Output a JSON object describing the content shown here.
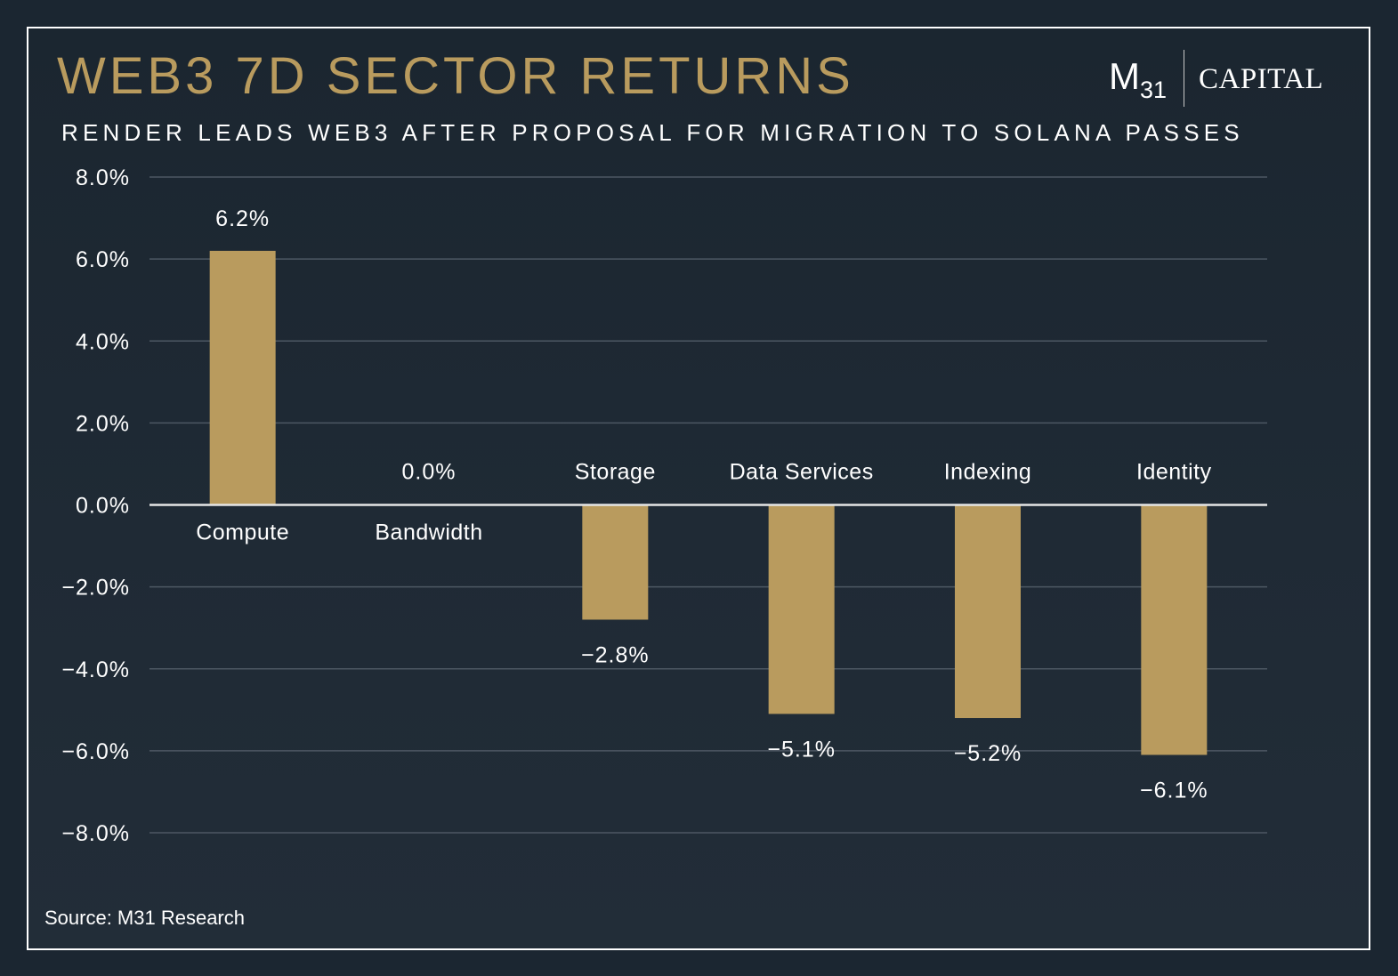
{
  "title": "WEB3 7D SECTOR RETURNS",
  "subtitle": "RENDER LEADS WEB3 AFTER PROPOSAL FOR MIGRATION TO SOLANA PASSES",
  "logo": {
    "mark": "M",
    "mark_sub": "31",
    "text": "CAPITAL"
  },
  "source": "Source: M31 Research",
  "colors": {
    "background": "#1b2631",
    "bar": "#b99b5e",
    "title": "#b99b5e",
    "text": "#ffffff",
    "grid": "#4d5763"
  },
  "chart_data": {
    "type": "bar",
    "categories": [
      "Compute",
      "Bandwidth",
      "Storage",
      "Data Services",
      "Indexing",
      "Identity"
    ],
    "values": [
      6.2,
      0.0,
      -2.8,
      -5.1,
      -5.2,
      -6.1
    ],
    "value_labels": [
      "6.2%",
      "0.0%",
      "−2.8%",
      "−5.1%",
      "−5.2%",
      "−6.1%"
    ],
    "ylim": [
      -8,
      8
    ],
    "yticks": [
      8,
      6,
      4,
      2,
      0,
      -2,
      -4,
      -6,
      -8
    ],
    "ytick_labels": [
      "8.0%",
      "6.0%",
      "4.0%",
      "2.0%",
      "0.0%",
      "−2.0%",
      "−4.0%",
      "−6.0%",
      "−8.0%"
    ],
    "grid": true,
    "legend": "none"
  }
}
